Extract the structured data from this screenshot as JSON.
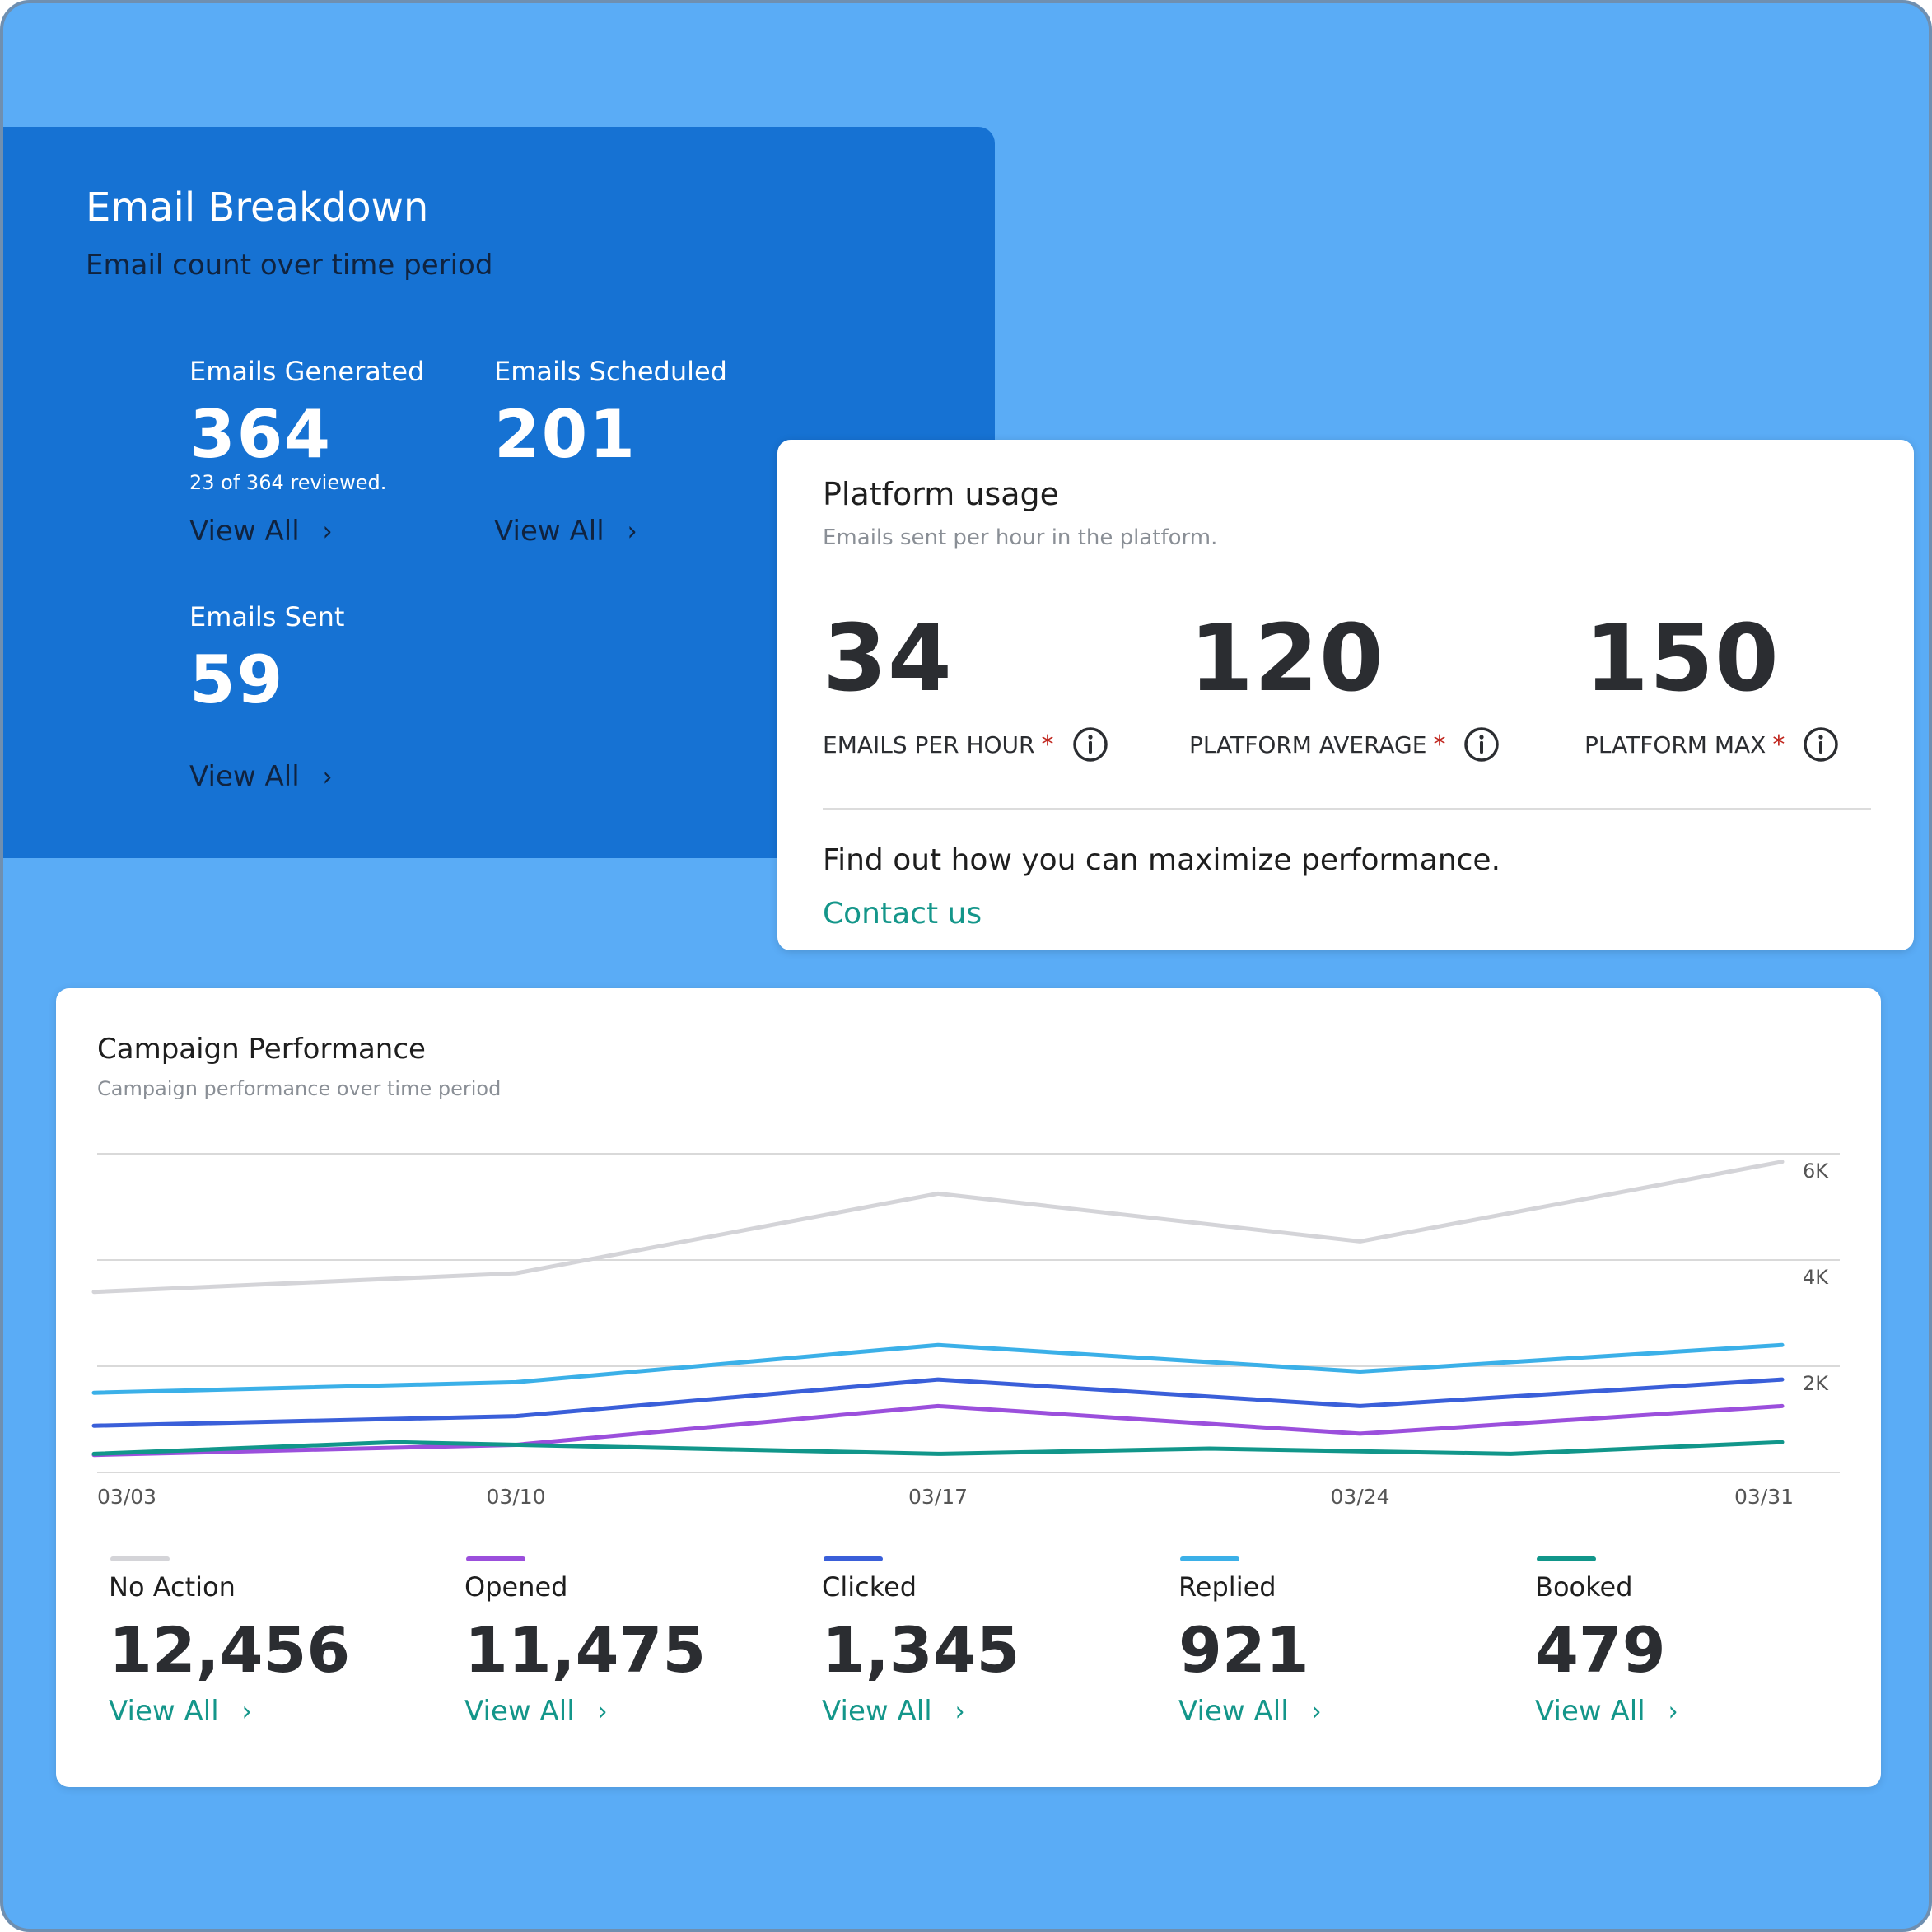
{
  "email_breakdown": {
    "title": "Email Breakdown",
    "subtitle": "Email count over time period",
    "stats": [
      {
        "label": "Emails Generated",
        "value": "364",
        "note": "23 of 364 reviewed.",
        "view_label": "View All"
      },
      {
        "label": "Emails Scheduled",
        "value": "201",
        "view_label": "View All"
      },
      {
        "label": "Emails Sent",
        "value": "59",
        "view_label": "View All"
      }
    ]
  },
  "platform_usage": {
    "title": "Platform usage",
    "subtitle": "Emails sent per hour in the platform.",
    "metrics": [
      {
        "value": "34",
        "label": "EMAILS PER HOUR",
        "required_mark": "*",
        "icon": "info-icon"
      },
      {
        "value": "120",
        "label": "PLATFORM AVERAGE",
        "required_mark": "*",
        "icon": "info-icon"
      },
      {
        "value": "150",
        "label": "PLATFORM MAX",
        "required_mark": "*",
        "icon": "info-icon"
      }
    ],
    "cta_text": "Find out how you can maximize performance.",
    "contact_label": "Contact us"
  },
  "campaign": {
    "title": "Campaign Performance",
    "subtitle": "Campaign performance over time period",
    "legend": [
      {
        "name": "No Action",
        "value": "12,456",
        "view_label": "View All",
        "color": "#d4d4d8"
      },
      {
        "name": "Opened",
        "value": "11,475",
        "view_label": "View All",
        "color": "#9b4fdc"
      },
      {
        "name": "Clicked",
        "value": "1,345",
        "view_label": "View All",
        "color": "#3a5fd9"
      },
      {
        "name": "Replied",
        "value": "921",
        "view_label": "View All",
        "color": "#3bb0e8"
      },
      {
        "name": "Booked",
        "value": "479",
        "view_label": "View All",
        "color": "#11968a"
      }
    ]
  },
  "colors": {
    "background": "#5aacf6",
    "breakdown_card": "#1672d3",
    "accent_teal": "#14968a",
    "required_red": "#c0261e"
  },
  "chart_data": {
    "type": "line",
    "x": [
      "03/03",
      "03/10",
      "03/17",
      "03/24",
      "03/31"
    ],
    "x_tick_labels": [
      "03/03",
      "03/10",
      "03/17",
      "03/24",
      "03/31"
    ],
    "y_tick_labels": [
      "2K",
      "4K",
      "6K"
    ],
    "ylim": [
      0,
      6000
    ],
    "grid": true,
    "y_axis_side": "right",
    "series": [
      {
        "name": "No Action",
        "color": "#d4d4d8",
        "x": [
          0,
          7,
          14,
          21,
          28
        ],
        "values": [
          3400,
          3750,
          5250,
          4350,
          5850
        ]
      },
      {
        "name": "Replied",
        "color": "#3bb0e8",
        "x": [
          0,
          7,
          14,
          21,
          28
        ],
        "values": [
          1500,
          1700,
          2400,
          1900,
          2400
        ]
      },
      {
        "name": "Clicked",
        "color": "#3a5fd9",
        "x": [
          0,
          7,
          14,
          21,
          28
        ],
        "values": [
          880,
          1060,
          1750,
          1250,
          1750
        ]
      },
      {
        "name": "Opened",
        "color": "#9b4fdc",
        "x": [
          0,
          7,
          14,
          21,
          28
        ],
        "values": [
          330,
          520,
          1250,
          730,
          1250
        ]
      },
      {
        "name": "Booked",
        "color": "#11968a",
        "x": [
          0,
          5,
          14,
          18.5,
          23.5,
          28
        ],
        "values": [
          350,
          570,
          350,
          450,
          350,
          570
        ]
      }
    ]
  }
}
